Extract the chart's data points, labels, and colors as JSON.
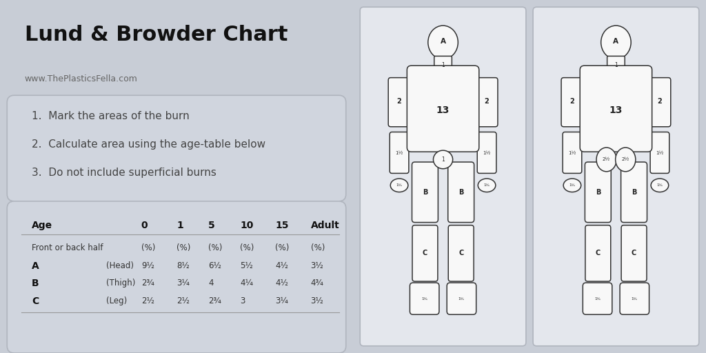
{
  "title": "Lund & Browder Chart",
  "subtitle": "www.ThePlasticsFella.com",
  "bg_color": "#c8cdd6",
  "panel_color": "#ffffff",
  "instructions_box_color": "#d0d5de",
  "instructions": [
    "1.  Mark the areas of the burn",
    "2.  Calculate area using the age-table below",
    "3.  Do not include superficial burns"
  ],
  "table_rowA": [
    "A",
    "(Head)",
    "9½",
    "8½",
    "6½",
    "5½",
    "4½",
    "3½"
  ],
  "table_rowB": [
    "B",
    "(Thigh)",
    "2¾",
    "3¼",
    "4",
    "4¼",
    "4½",
    "4¾"
  ],
  "table_rowC": [
    "C",
    "(Leg)",
    "2½",
    "2½",
    "2¾",
    "3",
    "3¼",
    "3½"
  ],
  "title_fontsize": 22,
  "subtitle_fontsize": 9,
  "instruction_fontsize": 11,
  "table_fontsize": 9
}
